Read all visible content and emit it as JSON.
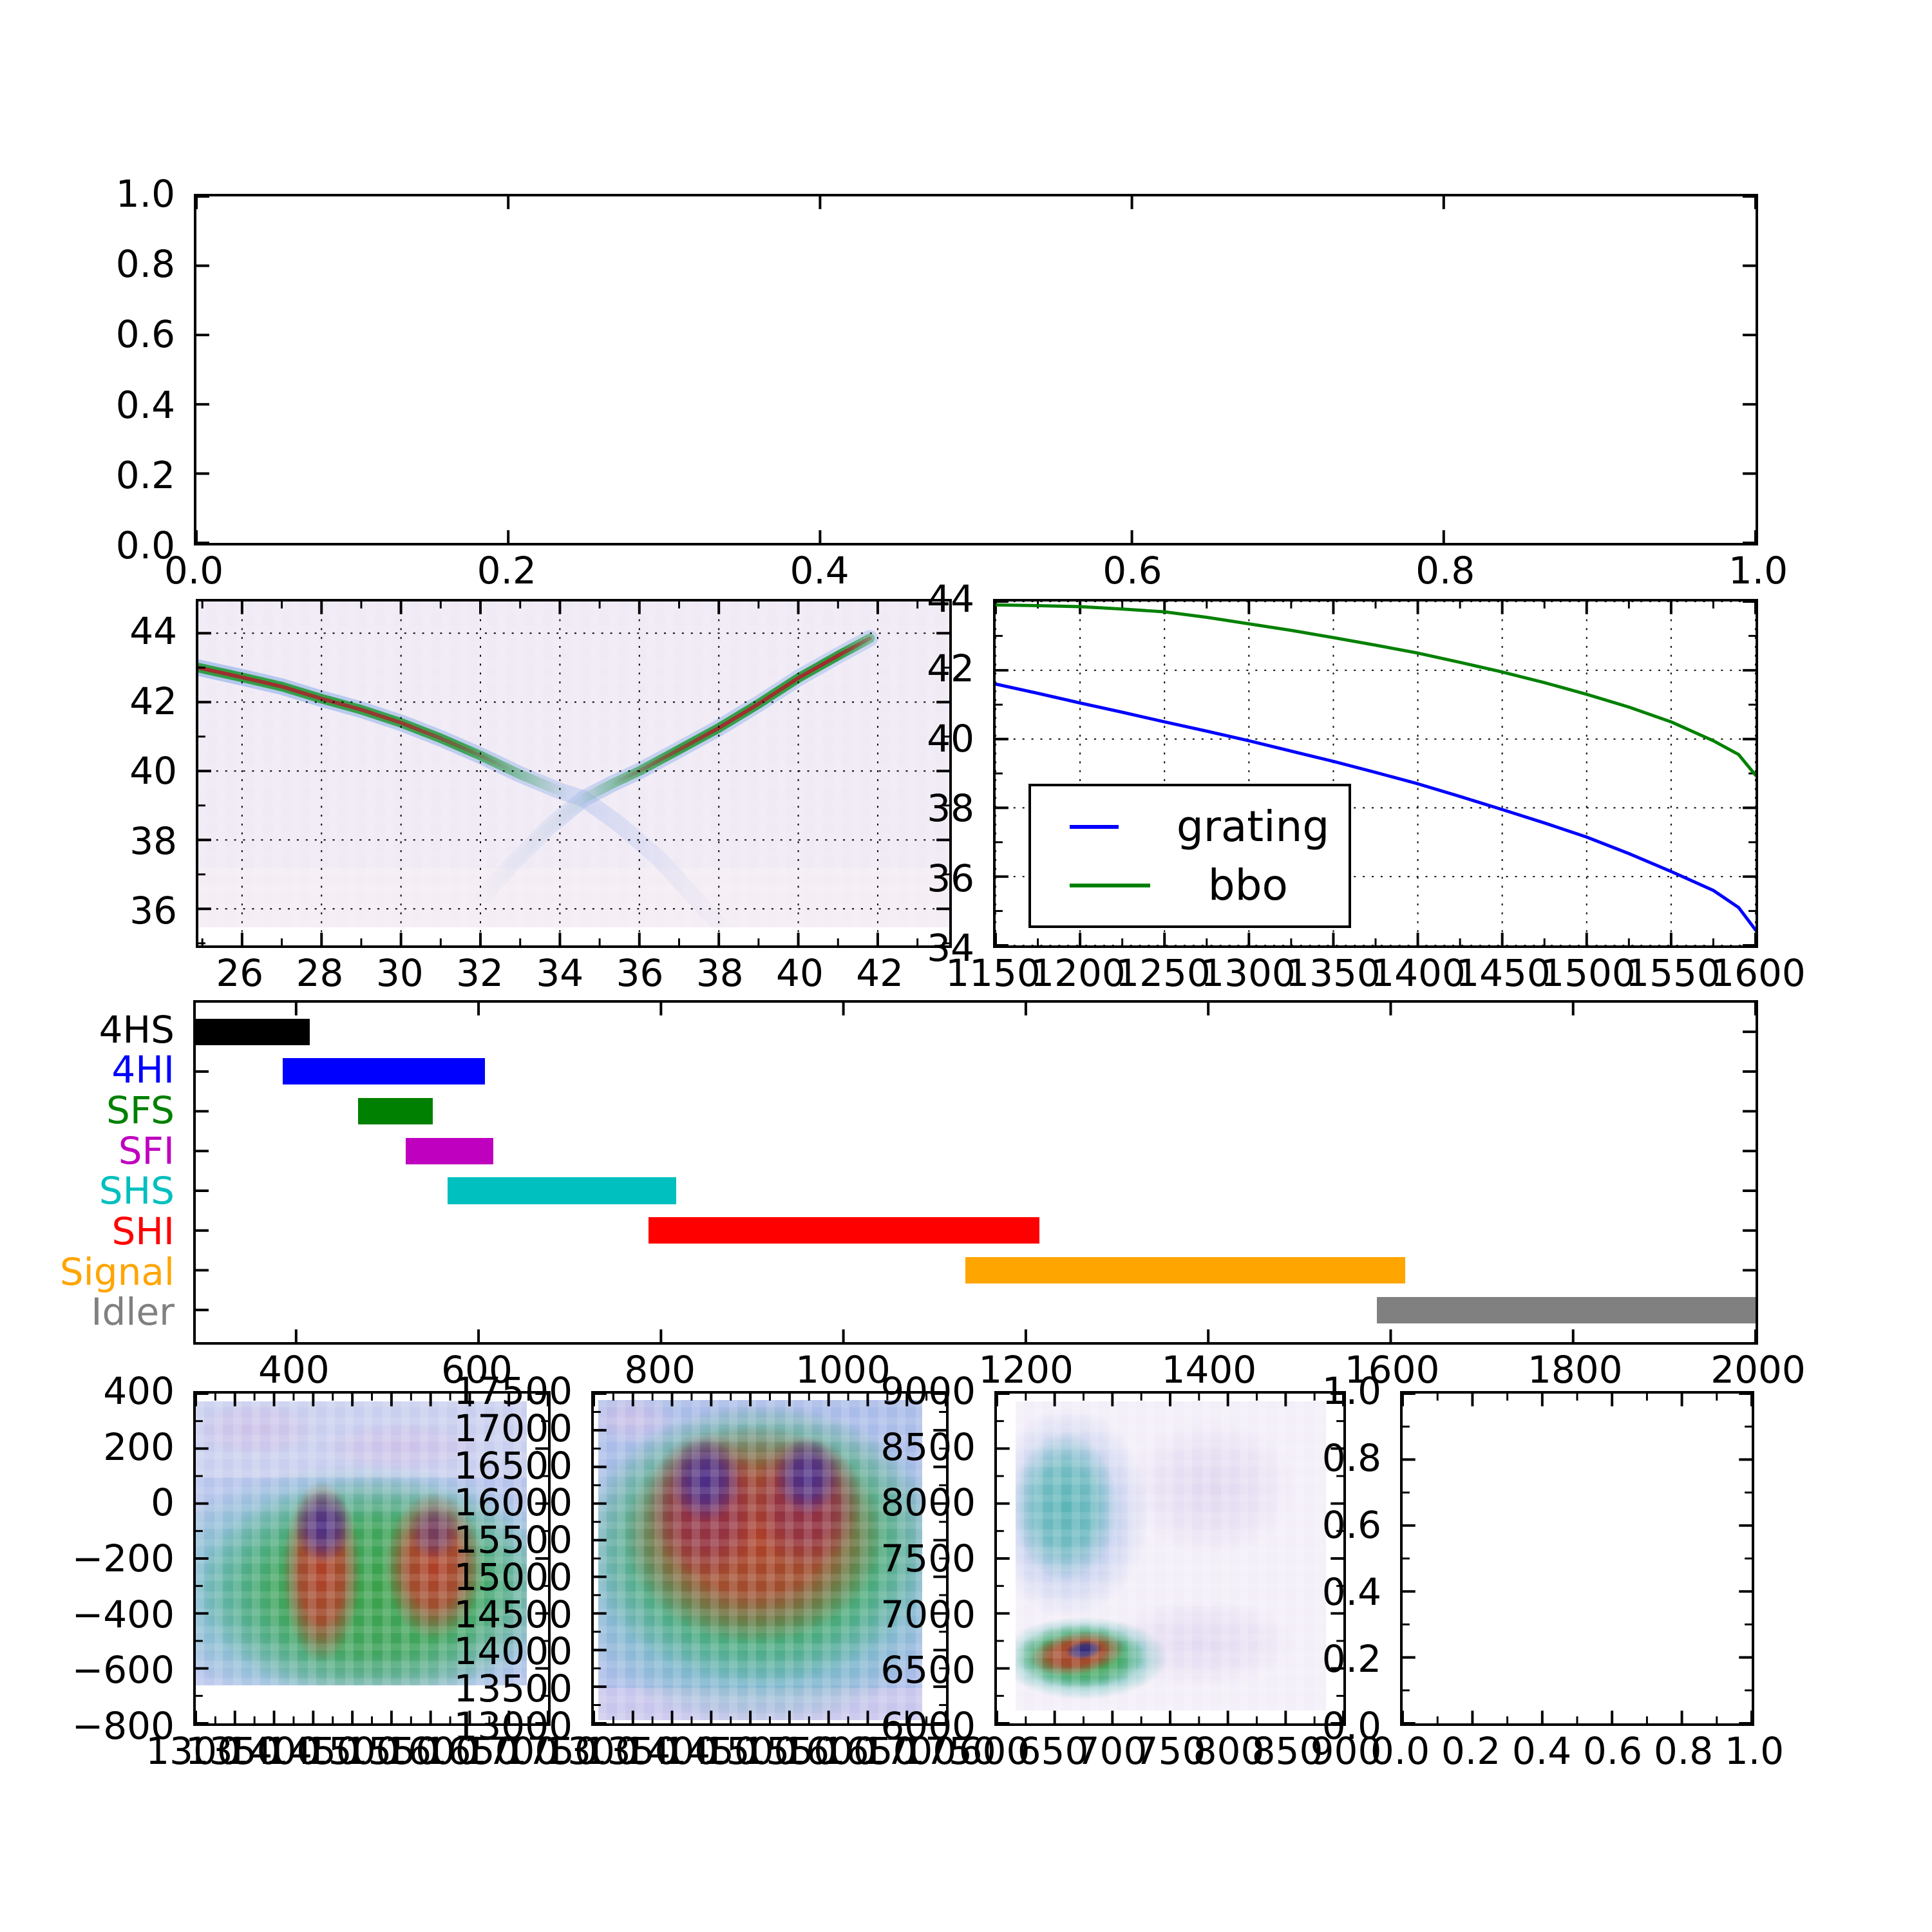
{
  "figure": {
    "background": "#ffffff",
    "note": "matplotlib-style multi-panel figure, no titles or axis-name labels visible"
  },
  "legend": {
    "entries": [
      {
        "label": "grating",
        "color": "#0000ff"
      },
      {
        "label": "bbo",
        "color": "#008000"
      }
    ]
  },
  "chart_data": [
    {
      "id": "top",
      "type": "empty",
      "name": "top-empty-plot",
      "xlim": [
        0.0,
        1.0
      ],
      "ylim": [
        0.0,
        1.0
      ],
      "grid": false,
      "xticks": {
        "vals": [
          0.0,
          0.2,
          0.4,
          0.6,
          0.8,
          1.0
        ],
        "labels": [
          "0.0",
          "0.2",
          "0.4",
          "0.6",
          "0.8",
          "1.0"
        ]
      },
      "yticks": {
        "vals": [
          1.0,
          0.8,
          0.6,
          0.4,
          0.2,
          0.0
        ],
        "labels": [
          "1.0",
          "0.8",
          "0.6",
          "0.4",
          "0.2",
          "0.0"
        ]
      }
    },
    {
      "id": "heat1",
      "type": "heatmap",
      "name": "angle-wavelength-phasematching-heatmap",
      "xlim": [
        24.9,
        43.8
      ],
      "ylim": [
        34.94,
        44.92
      ],
      "grid": true,
      "minor": {
        "x": 1,
        "y": 1
      },
      "xticks": {
        "vals": [
          26,
          28,
          30,
          32,
          34,
          36,
          38,
          40,
          42
        ],
        "labels": [
          "26",
          "28",
          "30",
          "32",
          "34",
          "36",
          "38",
          "40",
          "42"
        ]
      },
      "yticks": {
        "vals": [
          44,
          42,
          40,
          38,
          36
        ],
        "labels": [
          "44",
          "42",
          "40",
          "38",
          "36"
        ]
      },
      "image": {
        "left": 0.0,
        "top": 0.0,
        "width": 1.0,
        "height": 0.948,
        "base_color": "#f0eaf5"
      },
      "description": "two phase-matching curves crossing in an X at about (34.6, 39.2); strong red/green band upper-left descending, strong red/green band rising to upper-right, faint blue tails through the crossing",
      "branches": [
        {
          "name": "descending-branch",
          "points": [
            [
              24.9,
              43.0
            ],
            [
              26,
              42.72
            ],
            [
              27,
              42.45
            ],
            [
              28,
              42.1
            ],
            [
              29,
              41.78
            ],
            [
              30,
              41.4
            ],
            [
              31,
              40.95
            ],
            [
              32,
              40.45
            ],
            [
              33,
              39.9
            ],
            [
              34,
              39.42
            ],
            [
              34.6,
              39.2
            ],
            [
              35.5,
              38.45
            ],
            [
              36.5,
              37.45
            ],
            [
              37.3,
              36.45
            ],
            [
              38.2,
              35.3
            ]
          ]
        },
        {
          "name": "ascending-branch",
          "points": [
            [
              32.1,
              36.4
            ],
            [
              32.8,
              37.3
            ],
            [
              33.7,
              38.35
            ],
            [
              34.6,
              39.2
            ],
            [
              35.3,
              39.62
            ],
            [
              36,
              40.0
            ],
            [
              37,
              40.62
            ],
            [
              38,
              41.25
            ],
            [
              39,
              41.95
            ],
            [
              40,
              42.7
            ],
            [
              41,
              43.35
            ],
            [
              41.8,
              43.85
            ]
          ]
        }
      ]
    },
    {
      "id": "tuning",
      "type": "line",
      "name": "tuning-curves-plot",
      "xlim": [
        1150,
        1600
      ],
      "ylim": [
        34,
        44
      ],
      "grid": true,
      "minor": {
        "x": 25,
        "y": 1
      },
      "xticks": {
        "vals": [
          1150,
          1200,
          1250,
          1300,
          1350,
          1400,
          1450,
          1500,
          1550,
          1600
        ],
        "labels": [
          "1150",
          "1200",
          "1250",
          "1300",
          "1350",
          "1400",
          "1450",
          "1500",
          "1550",
          "1600"
        ]
      },
      "yticks": {
        "vals": [
          44,
          42,
          40,
          38,
          36,
          34
        ],
        "labels": [
          "44",
          "42",
          "40",
          "38",
          "36",
          "34"
        ]
      },
      "legend_pos": {
        "left": 0.043,
        "top": 0.53,
        "width": 0.425,
        "height": 0.42
      },
      "series": [
        {
          "name": "grating",
          "color": "#0000ff",
          "x": [
            1150,
            1175,
            1200,
            1225,
            1250,
            1275,
            1300,
            1325,
            1350,
            1375,
            1400,
            1425,
            1450,
            1475,
            1500,
            1525,
            1550,
            1575,
            1590,
            1600
          ],
          "y": [
            41.6,
            41.33,
            41.05,
            40.78,
            40.5,
            40.23,
            39.95,
            39.65,
            39.35,
            39.03,
            38.7,
            38.33,
            37.95,
            37.56,
            37.15,
            36.67,
            36.15,
            35.6,
            35.1,
            34.45
          ]
        },
        {
          "name": "bbo",
          "color": "#008000",
          "x": [
            1150,
            1175,
            1200,
            1225,
            1250,
            1275,
            1300,
            1325,
            1350,
            1375,
            1400,
            1425,
            1450,
            1475,
            1500,
            1525,
            1550,
            1575,
            1590,
            1600
          ],
          "y": [
            43.9,
            43.88,
            43.85,
            43.78,
            43.7,
            43.54,
            43.35,
            43.16,
            42.95,
            42.73,
            42.5,
            42.23,
            41.95,
            41.64,
            41.3,
            40.93,
            40.5,
            39.95,
            39.55,
            38.95
          ]
        }
      ]
    },
    {
      "id": "bands",
      "type": "bar-horizontal",
      "name": "wavelength-bands-chart",
      "xlim": [
        290,
        2000
      ],
      "grid": false,
      "xticks": {
        "vals": [
          400,
          600,
          800,
          1000,
          1200,
          1400,
          1600,
          1800,
          2000
        ],
        "labels": [
          "400",
          "600",
          "800",
          "1000",
          "1200",
          "1400",
          "1600",
          "1800",
          "2000"
        ]
      },
      "bar_height_frac": 0.078,
      "items": [
        {
          "label": "4HS",
          "color": "#000000",
          "range": [
            290,
            415
          ],
          "clipped_left": true
        },
        {
          "label": "4HI",
          "color": "#0000ff",
          "range": [
            385,
            607
          ]
        },
        {
          "label": "SFS",
          "color": "#008000",
          "range": [
            468,
            550
          ]
        },
        {
          "label": "SFI",
          "color": "#bf00bf",
          "range": [
            520,
            616
          ]
        },
        {
          "label": "SHS",
          "color": "#00bfbf",
          "range": [
            566,
            817
          ]
        },
        {
          "label": "SHI",
          "color": "#ff0000",
          "range": [
            786,
            1215
          ]
        },
        {
          "label": "Signal",
          "color": "#ffa500",
          "range": [
            1134,
            1616
          ]
        },
        {
          "label": "Idler",
          "color": "#808080",
          "range": [
            1585,
            2000
          ],
          "clipped_right": true
        }
      ]
    },
    {
      "id": "b1",
      "type": "heatmap",
      "name": "joint-spectrum-heatmap-1",
      "xlim": [
        1300,
        1750
      ],
      "ylim": [
        -800,
        400
      ],
      "grid": false,
      "minor": {
        "x": 25,
        "y": 100
      },
      "xticks": {
        "vals": [
          1300,
          1350,
          1400,
          1450,
          1500,
          1550,
          1600,
          1650,
          1700,
          1750
        ],
        "labels": [
          "1300",
          "1350",
          "1400",
          "1450",
          "1500",
          "1550",
          "1600",
          "1650",
          "1700",
          "1750"
        ]
      },
      "yticks": {
        "vals": [
          400,
          200,
          0,
          -200,
          -400,
          -600,
          -800
        ],
        "labels": [
          "400",
          "200",
          "0",
          "−200",
          "−400",
          "−600",
          "−800"
        ]
      },
      "image": {
        "left": 0.0,
        "top": 0.023,
        "width": 0.94,
        "height": 0.862,
        "base_color": "#b7c4ec"
      },
      "description": "two hot vertical columns (centers ~1445 and ~1600 nm, y ~0 to -600) with purple cores over a teal-green field; noisy light-blue band above y~100",
      "layers": [
        {
          "kind": "rect",
          "x": 0,
          "y": 0,
          "w": 1,
          "h": 0.27,
          "color": "#c9cfee"
        },
        {
          "kind": "lav",
          "x": 0.18,
          "y": 0.1,
          "rx": 0.2,
          "ry": 0.1
        },
        {
          "kind": "lav",
          "x": 0.62,
          "y": 0.16,
          "rx": 0.25,
          "ry": 0.09
        },
        {
          "kind": "teal",
          "x": 0.5,
          "y": 0.66,
          "rx": 0.68,
          "ry": 0.44
        },
        {
          "kind": "green",
          "x": 0.54,
          "y": 0.66,
          "rx": 0.53,
          "ry": 0.4
        },
        {
          "kind": "red",
          "x": 0.38,
          "y": 0.6,
          "rx": 0.12,
          "ry": 0.32
        },
        {
          "kind": "red",
          "x": 0.72,
          "y": 0.58,
          "rx": 0.15,
          "ry": 0.26
        },
        {
          "kind": "purple",
          "x": 0.385,
          "y": 0.44,
          "rx": 0.09,
          "ry": 0.13
        },
        {
          "kind": "purple",
          "x": 0.72,
          "y": 0.46,
          "rx": 0.08,
          "ry": 0.1,
          "opacity": 0.55
        }
      ]
    },
    {
      "id": "b2",
      "type": "heatmap",
      "name": "joint-spectrum-heatmap-2",
      "xlim": [
        1300,
        1750
      ],
      "ylim": [
        13000,
        17500
      ],
      "grid": false,
      "minor": {
        "x": 25,
        "y": 250
      },
      "xticks": {
        "vals": [
          1300,
          1350,
          1400,
          1450,
          1500,
          1550,
          1600,
          1650,
          1700,
          1750
        ],
        "labels": [
          "1300",
          "1350",
          "1400",
          "1450",
          "1500",
          "1550",
          "1600",
          "1650",
          "1700",
          "1750"
        ]
      },
      "yticks": {
        "vals": [
          17500,
          17000,
          16500,
          16000,
          15500,
          15000,
          14500,
          14000,
          13500,
          13000
        ],
        "labels": [
          "17500",
          "17000",
          "16500",
          "16000",
          "15500",
          "15000",
          "14500",
          "14000",
          "13500",
          "13000"
        ]
      },
      "image": {
        "left": 0.013,
        "top": 0.019,
        "width": 0.92,
        "height": 0.971,
        "base_color": "#aabce8"
      },
      "description": "broad M-shaped hot region with two purple lobes (~16300 cm-1) over green field, teal band below, light-blue noisy bottom",
      "layers": [
        {
          "kind": "lav",
          "x": 0.1,
          "y": 0.06,
          "rx": 0.14,
          "ry": 0.08
        },
        {
          "kind": "rect",
          "x": 0,
          "y": 0.9,
          "w": 1,
          "h": 0.1,
          "color": "#cfc8ec",
          "opacity": 0.8
        },
        {
          "kind": "teal",
          "x": 0.5,
          "y": 0.52,
          "rx": 0.64,
          "ry": 0.5
        },
        {
          "kind": "green",
          "x": 0.5,
          "y": 0.45,
          "rx": 0.54,
          "ry": 0.44
        },
        {
          "kind": "red",
          "x": 0.48,
          "y": 0.42,
          "rx": 0.4,
          "ry": 0.34
        },
        {
          "kind": "maroon",
          "x": 0.33,
          "y": 0.33,
          "rx": 0.18,
          "ry": 0.23
        },
        {
          "kind": "maroon",
          "x": 0.64,
          "y": 0.32,
          "rx": 0.17,
          "ry": 0.21
        },
        {
          "kind": "purple",
          "x": 0.33,
          "y": 0.25,
          "rx": 0.11,
          "ry": 0.13
        },
        {
          "kind": "purple",
          "x": 0.645,
          "y": 0.24,
          "rx": 0.1,
          "ry": 0.12
        }
      ]
    },
    {
      "id": "b3",
      "type": "heatmap",
      "name": "joint-spectrum-heatmap-3",
      "xlim": [
        600,
        900
      ],
      "ylim": [
        6000,
        9000
      ],
      "grid": false,
      "minor": {
        "x": 25,
        "y": 250
      },
      "xticks": {
        "vals": [
          600,
          650,
          700,
          750,
          800,
          850,
          900
        ],
        "labels": [
          "600",
          "650",
          "700",
          "750",
          "800",
          "850",
          "900"
        ]
      },
      "yticks": {
        "vals": [
          9000,
          8500,
          8000,
          7500,
          7000,
          6500,
          6000
        ],
        "labels": [
          "9000",
          "8500",
          "8000",
          "7500",
          "7000",
          "6500",
          "6000"
        ]
      },
      "image": {
        "left": 0.053,
        "top": 0.023,
        "width": 0.897,
        "height": 0.938,
        "base_color": "#f3eef8"
      },
      "description": "pale lavender field; soft teal blob upper-left (~640 nm, 8000 cm-1); intense elongated hot spot lower-left (~670 nm, 6700 cm-1) with dark core",
      "layers": [
        {
          "kind": "lav",
          "x": 0.63,
          "y": 0.28,
          "rx": 0.27,
          "ry": 0.22,
          "opacity": 0.55
        },
        {
          "kind": "lav",
          "x": 0.6,
          "y": 0.78,
          "rx": 0.3,
          "ry": 0.14,
          "opacity": 0.5
        },
        {
          "kind": "lblue",
          "x": 0.17,
          "y": 0.36,
          "rx": 0.26,
          "ry": 0.34,
          "opacity": 0.85
        },
        {
          "kind": "teal",
          "x": 0.16,
          "y": 0.34,
          "rx": 0.17,
          "ry": 0.24,
          "opacity": 0.8
        },
        {
          "kind": "teal",
          "x": 0.22,
          "y": 0.83,
          "rx": 0.27,
          "ry": 0.135
        },
        {
          "kind": "green",
          "x": 0.21,
          "y": 0.825,
          "rx": 0.21,
          "ry": 0.105
        },
        {
          "kind": "red",
          "x": 0.2,
          "y": 0.815,
          "rx": 0.155,
          "ry": 0.07,
          "rot": -8
        },
        {
          "kind": "navy",
          "x": 0.22,
          "y": 0.805,
          "rx": 0.06,
          "ry": 0.03,
          "rot": -8
        }
      ]
    },
    {
      "id": "b4",
      "type": "empty",
      "name": "bottom-empty-plot",
      "xlim": [
        0.0,
        1.0
      ],
      "ylim": [
        0.0,
        1.0
      ],
      "grid": false,
      "minor": {
        "x": 0.1,
        "y": 0.1
      },
      "xticks": {
        "vals": [
          0.0,
          0.2,
          0.4,
          0.6,
          0.8,
          1.0
        ],
        "labels": [
          "0.0",
          "0.2",
          "0.4",
          "0.6",
          "0.8",
          "1.0"
        ]
      },
      "yticks": {
        "vals": [
          1.0,
          0.8,
          0.6,
          0.4,
          0.2,
          0.0
        ],
        "labels": [
          "1.0",
          "0.8",
          "0.6",
          "0.4",
          "0.2",
          "0.0"
        ]
      }
    }
  ]
}
